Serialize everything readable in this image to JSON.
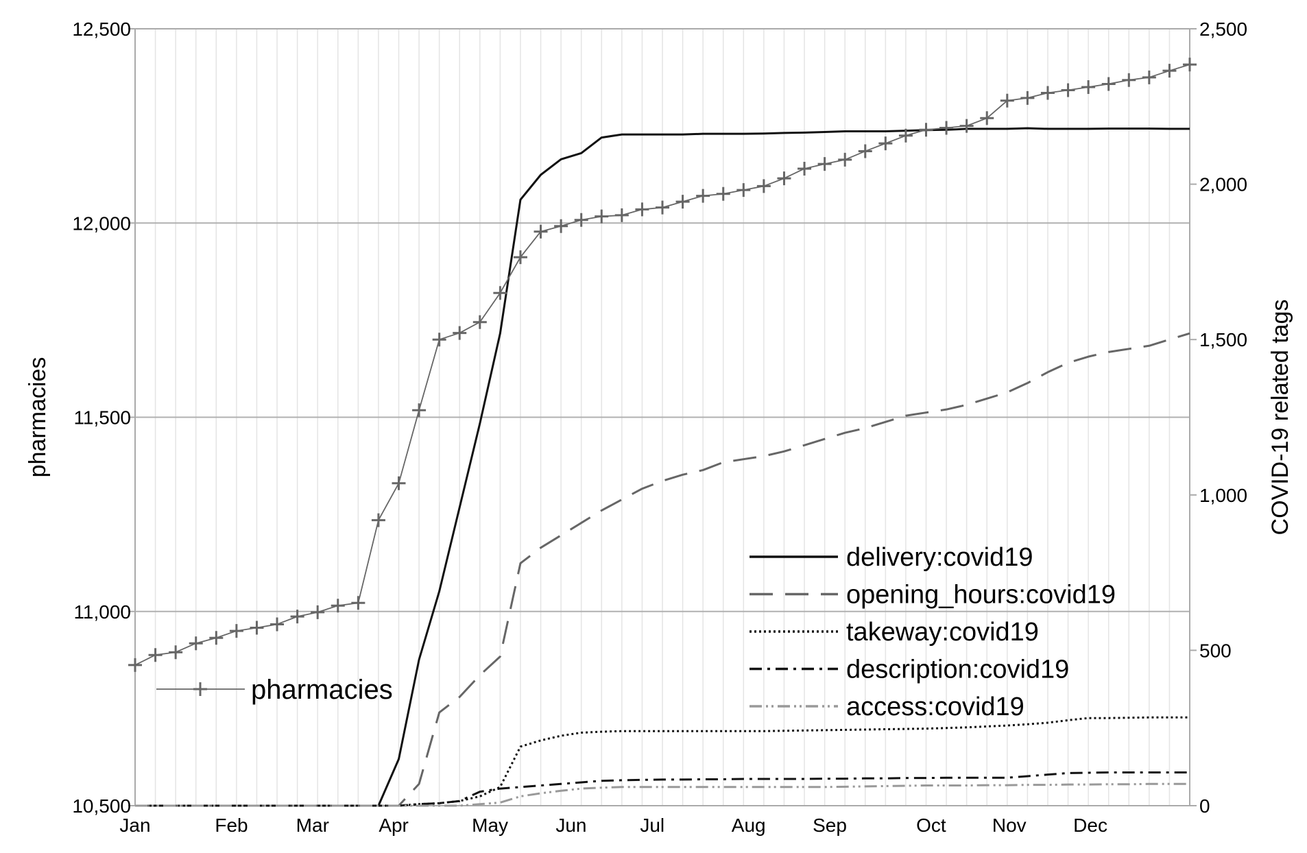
{
  "chart_data": {
    "type": "line",
    "title": "",
    "xlabel": "",
    "ylabel_left": "pharmacies",
    "ylabel_right": "COVID-19 related tags",
    "months": [
      "Jan",
      "Feb",
      "Mar",
      "Apr",
      "May",
      "Jun",
      "Jul",
      "Aug",
      "Sep",
      "Oct",
      "Nov",
      "Dec"
    ],
    "x_weeks_range": [
      0,
      52
    ],
    "ylim_left": [
      10500,
      12500
    ],
    "ylim_right": [
      0,
      2500
    ],
    "yticks_left": [
      10500,
      11000,
      11500,
      12000,
      12500
    ],
    "yticks_left_labels": [
      "10,500",
      "11,000",
      "11,500",
      "12,000",
      "12,500"
    ],
    "yticks_right": [
      0,
      500,
      1000,
      1500,
      2000,
      2500
    ],
    "yticks_right_labels": [
      "0",
      "500",
      "1,000",
      "1,500",
      "2,000",
      "2,500"
    ],
    "series": [
      {
        "name": "pharmacies",
        "axis": "left",
        "color": "#666666",
        "dash": "",
        "marker": "plus",
        "values": [
          10862,
          10888,
          10895,
          10918,
          10932,
          10950,
          10958,
          10967,
          10987,
          10998,
          11015,
          11022,
          11235,
          11330,
          11518,
          11700,
          11717,
          11745,
          11820,
          11912,
          11978,
          11992,
          12008,
          12017,
          12020,
          12035,
          12040,
          12055,
          12070,
          12075,
          12085,
          12095,
          12115,
          12140,
          12152,
          12163,
          12185,
          12205,
          12225,
          12240,
          12245,
          12250,
          12270,
          12315,
          12322,
          12335,
          12342,
          12350,
          12358,
          12368,
          12375,
          12392,
          12408
        ]
      },
      {
        "name": "delivery:covid19",
        "axis": "right",
        "color": "#111111",
        "dash": "",
        "values": [
          0,
          0,
          0,
          0,
          0,
          0,
          0,
          0,
          0,
          0,
          0,
          0,
          0,
          150,
          470,
          690,
          960,
          1230,
          1520,
          1950,
          2030,
          2080,
          2100,
          2150,
          2160,
          2160,
          2160,
          2160,
          2162,
          2162,
          2162,
          2163,
          2165,
          2166,
          2168,
          2170,
          2170,
          2170,
          2172,
          2174,
          2175,
          2178,
          2178,
          2178,
          2180,
          2178,
          2178,
          2178,
          2179,
          2179,
          2179,
          2178,
          2178
        ]
      },
      {
        "name": "opening_hours:covid19",
        "axis": "right",
        "color": "#666666",
        "dash": "34,18",
        "values": [
          0,
          0,
          0,
          0,
          0,
          0,
          0,
          0,
          0,
          0,
          0,
          0,
          0,
          0,
          70,
          300,
          350,
          420,
          480,
          780,
          830,
          870,
          910,
          950,
          985,
          1020,
          1045,
          1065,
          1080,
          1105,
          1115,
          1125,
          1140,
          1160,
          1180,
          1200,
          1215,
          1235,
          1255,
          1265,
          1275,
          1290,
          1310,
          1330,
          1360,
          1395,
          1425,
          1445,
          1460,
          1470,
          1480,
          1500,
          1520
        ]
      },
      {
        "name": "takeway:covid19",
        "axis": "right",
        "color": "#111111",
        "dash": "3,4",
        "values": [
          0,
          0,
          0,
          0,
          0,
          0,
          0,
          0,
          0,
          0,
          0,
          0,
          0,
          0,
          5,
          8,
          15,
          30,
          60,
          190,
          210,
          225,
          235,
          238,
          240,
          240,
          240,
          240,
          240,
          240,
          240,
          240,
          241,
          242,
          243,
          244,
          245,
          246,
          247,
          248,
          250,
          252,
          255,
          258,
          262,
          267,
          275,
          282,
          282,
          283,
          284,
          284,
          284
        ]
      },
      {
        "name": "description:covid19",
        "axis": "right",
        "color": "#111111",
        "dash": "18,8,4,8",
        "values": [
          0,
          0,
          0,
          0,
          0,
          0,
          0,
          0,
          0,
          0,
          0,
          0,
          0,
          0,
          5,
          8,
          15,
          45,
          55,
          60,
          65,
          70,
          75,
          80,
          82,
          83,
          84,
          84,
          85,
          85,
          86,
          86,
          86,
          86,
          87,
          87,
          88,
          88,
          89,
          89,
          90,
          90,
          90,
          90,
          95,
          100,
          105,
          106,
          107,
          107,
          107,
          107,
          107
        ]
      },
      {
        "name": "access:covid19",
        "axis": "right",
        "color": "#999999",
        "dash": "18,6,3,5,3,6",
        "values": [
          0,
          0,
          0,
          0,
          0,
          0,
          0,
          0,
          0,
          0,
          0,
          0,
          0,
          0,
          0,
          0,
          0,
          5,
          10,
          30,
          40,
          48,
          55,
          58,
          60,
          60,
          60,
          60,
          60,
          60,
          60,
          60,
          60,
          60,
          60,
          61,
          62,
          63,
          64,
          65,
          65,
          65,
          66,
          66,
          67,
          67,
          68,
          68,
          69,
          69,
          70,
          70,
          70
        ]
      }
    ]
  }
}
